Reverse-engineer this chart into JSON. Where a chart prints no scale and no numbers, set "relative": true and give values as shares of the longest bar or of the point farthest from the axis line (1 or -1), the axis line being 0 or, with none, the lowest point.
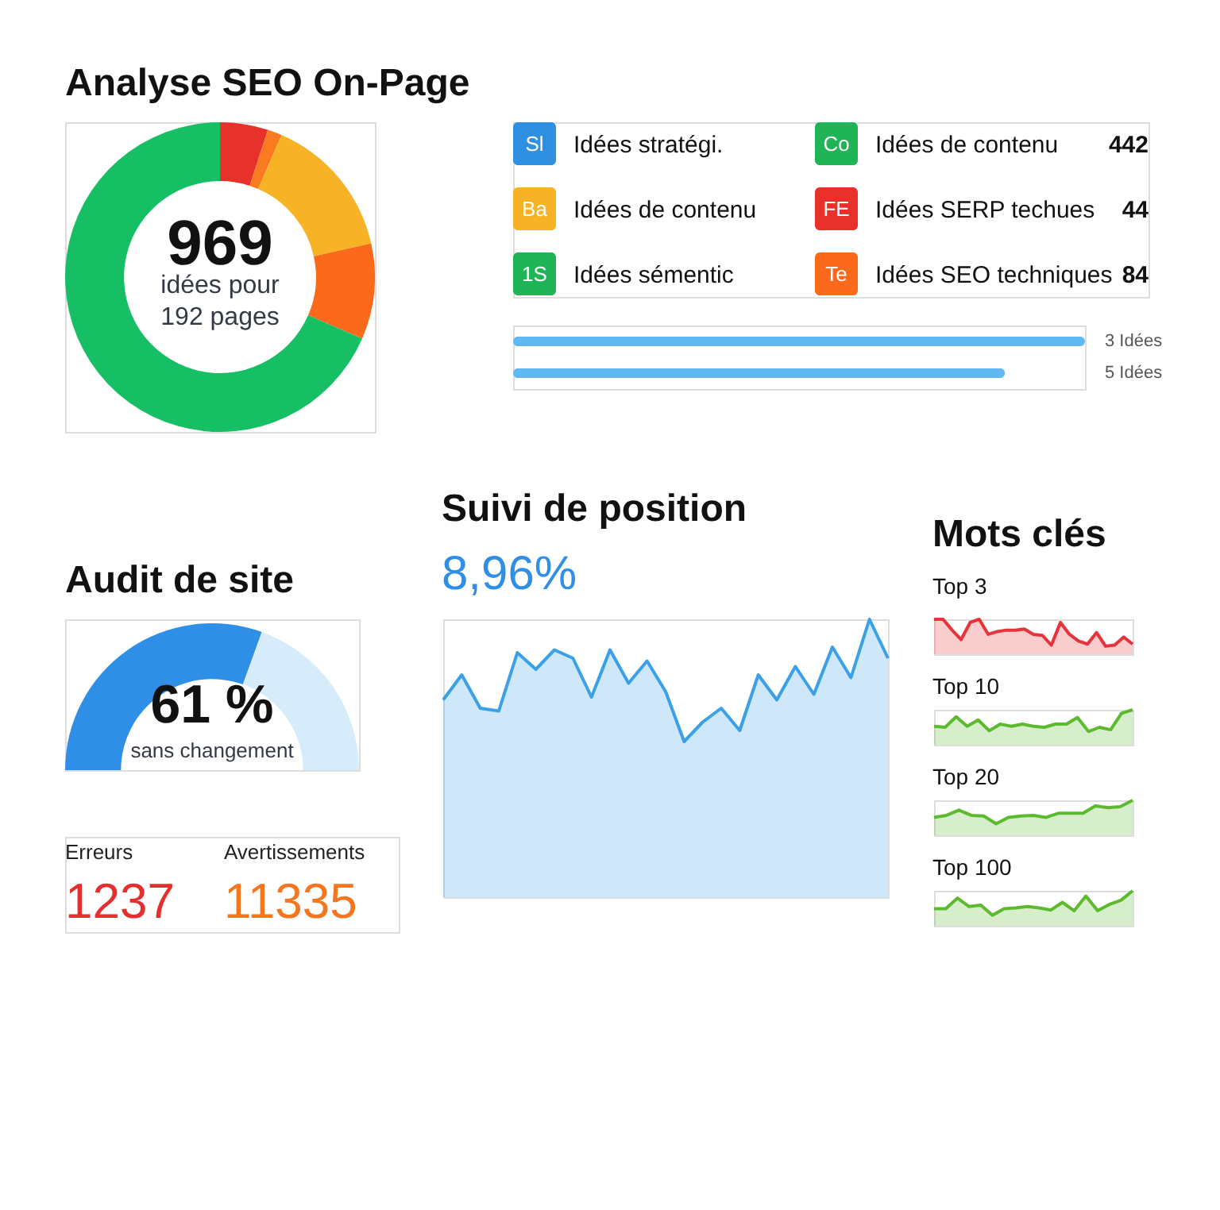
{
  "chart_data": [
    {
      "type": "donut",
      "title": "Analyse SEO On-Page",
      "categories": [
        null,
        null,
        null,
        null,
        null
      ],
      "values": [
        5,
        1.5,
        15,
        10,
        68.5
      ],
      "colors": [
        "#e8312a",
        "#f97a1f",
        "#f7b325",
        "#fa6a1a",
        "#16bf63"
      ],
      "annotations": [
        "969",
        "idées pour",
        "192 pages"
      ]
    },
    {
      "type": "other",
      "categories": [
        "Idées stratégi.",
        "Idées de contenu",
        "Idées sémentic",
        "Idées de contenu",
        "Idées SERP techues",
        "Idées SEO techniques"
      ],
      "values": [
        null,
        null,
        null,
        442,
        44,
        84
      ],
      "data_labels": true,
      "colors": [
        "#2f8fe0",
        "#f7b325",
        "#1fb556",
        "#1fb556",
        "#e8312a",
        "#fa6a1a"
      ],
      "annotations": [
        "Sl",
        "Ba",
        "1S",
        "Co",
        "FE",
        "Te"
      ]
    },
    {
      "type": "bar",
      "orientation": "horizontal",
      "relative": true,
      "categories": [
        "3 Idées",
        "5 Idées"
      ],
      "values": [
        1,
        0.86
      ],
      "color": "#5fb8f2"
    },
    {
      "type": "donut",
      "title": "Audit de site",
      "categories": [
        null,
        null
      ],
      "values": [
        61,
        39
      ],
      "colors": [
        "#2f8fe6",
        "#d6ecfb"
      ],
      "annotations": [
        "61 %",
        "sans changement"
      ]
    },
    {
      "type": "other",
      "categories": [
        "Erreurs",
        "Avertissements"
      ],
      "values": [
        1237,
        11335
      ],
      "data_labels": true,
      "colors": [
        "#e52e2e",
        "#f4761f"
      ]
    },
    {
      "type": "area",
      "title": "Suivi de position",
      "subtitle": "8,96%",
      "relative": true,
      "categories": [
        null,
        null,
        null,
        null,
        null,
        null,
        null,
        null,
        null,
        null,
        null,
        null,
        null,
        null,
        null,
        null,
        null,
        null,
        null,
        null,
        null,
        null,
        null,
        null,
        null
      ],
      "series": [
        {
          "color": "#3aa0e8",
          "values": [
            0.71,
            0.8,
            0.68,
            0.67,
            0.88,
            0.82,
            0.89,
            0.86,
            0.72,
            0.89,
            0.77,
            0.85,
            0.74,
            0.56,
            0.63,
            0.68,
            0.6,
            0.8,
            0.71,
            0.83,
            0.73,
            0.9,
            0.79,
            1,
            0.86
          ]
        }
      ]
    },
    {
      "type": "area",
      "title": "Mots clés",
      "subtitle": "Top 3",
      "relative": true,
      "categories": [
        null,
        null,
        null,
        null,
        null,
        null,
        null,
        null,
        null,
        null,
        null,
        null,
        null,
        null,
        null,
        null,
        null,
        null,
        null,
        null,
        null,
        null,
        null
      ],
      "series": [
        {
          "color": "#e8333a",
          "values": [
            1,
            1,
            0.69,
            0.42,
            0.91,
            1,
            0.57,
            0.65,
            0.69,
            0.69,
            0.72,
            0.57,
            0.54,
            0.26,
            0.91,
            0.57,
            0.38,
            0.29,
            0.62,
            0.23,
            0.26,
            0.49,
            0.29
          ]
        }
      ]
    },
    {
      "type": "area",
      "subtitle": "Top 10",
      "relative": true,
      "categories": [
        null,
        null,
        null,
        null,
        null,
        null,
        null,
        null,
        null,
        null,
        null,
        null,
        null,
        null,
        null,
        null,
        null,
        null,
        null
      ],
      "series": [
        {
          "color": "#5cba2e",
          "values": [
            0.53,
            0.5,
            0.8,
            0.53,
            0.71,
            0.4,
            0.59,
            0.53,
            0.59,
            0.53,
            0.5,
            0.59,
            0.59,
            0.78,
            0.38,
            0.5,
            0.43,
            0.9,
            1
          ]
        }
      ]
    },
    {
      "type": "area",
      "subtitle": "Top 20",
      "relative": true,
      "categories": [
        null,
        null,
        null,
        null,
        null,
        null,
        null,
        null,
        null,
        null,
        null,
        null,
        null,
        null,
        null,
        null,
        null
      ],
      "series": [
        {
          "color": "#5cba2e",
          "values": [
            0.51,
            0.57,
            0.72,
            0.57,
            0.55,
            0.33,
            0.51,
            0.55,
            0.57,
            0.51,
            0.63,
            0.63,
            0.63,
            0.84,
            0.79,
            0.82,
            1
          ]
        }
      ]
    },
    {
      "type": "area",
      "subtitle": "Top 100",
      "relative": true,
      "categories": [
        null,
        null,
        null,
        null,
        null,
        null,
        null,
        null,
        null,
        null,
        null,
        null,
        null,
        null,
        null,
        null,
        null,
        null
      ],
      "series": [
        {
          "color": "#5cba2e",
          "values": [
            0.49,
            0.49,
            0.79,
            0.55,
            0.59,
            0.3,
            0.49,
            0.51,
            0.55,
            0.51,
            0.45,
            0.67,
            0.43,
            0.85,
            0.43,
            0.61,
            0.73,
            1
          ]
        }
      ]
    }
  ]
}
